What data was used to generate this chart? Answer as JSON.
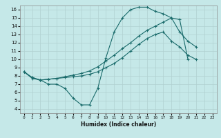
{
  "xlabel": "Humidex (Indice chaleur)",
  "bg_color": "#c5e8e8",
  "grid_color": "#b0d0d0",
  "line_color": "#1a6b6b",
  "xlim": [
    -0.5,
    23.5
  ],
  "ylim": [
    3.5,
    16.5
  ],
  "xticks": [
    0,
    1,
    2,
    3,
    4,
    5,
    6,
    7,
    8,
    9,
    10,
    11,
    12,
    13,
    14,
    15,
    16,
    17,
    18,
    19,
    20,
    21,
    22,
    23
  ],
  "yticks": [
    4,
    5,
    6,
    7,
    8,
    9,
    10,
    11,
    12,
    13,
    14,
    15,
    16
  ],
  "line1_y": [
    8.5,
    7.7,
    7.5,
    7.0,
    7.0,
    6.5,
    5.3,
    4.5,
    4.5,
    6.5,
    10.2,
    13.3,
    15.0,
    16.0,
    16.3,
    16.3,
    15.8,
    15.5,
    15.0,
    13.3,
    12.2,
    11.5
  ],
  "line1_x": [
    0,
    1,
    2,
    3,
    4,
    5,
    6,
    7,
    8,
    9,
    10,
    11,
    12,
    13,
    14,
    15,
    16,
    17,
    18,
    19,
    20,
    21
  ],
  "line2_y": [
    8.5,
    7.8,
    7.5,
    7.6,
    7.7,
    7.8,
    7.9,
    8.0,
    8.2,
    8.5,
    9.0,
    9.5,
    10.2,
    11.0,
    11.8,
    12.5,
    13.0,
    13.3,
    12.2,
    11.5,
    10.5,
    10.0
  ],
  "line2_x": [
    0,
    1,
    2,
    3,
    4,
    5,
    6,
    7,
    8,
    9,
    10,
    11,
    12,
    13,
    14,
    15,
    16,
    17,
    18,
    19,
    20,
    21
  ],
  "line3_y": [
    8.5,
    7.8,
    7.5,
    7.6,
    7.7,
    7.9,
    8.1,
    8.3,
    8.6,
    9.1,
    9.8,
    10.5,
    11.3,
    12.0,
    12.8,
    13.5,
    14.0,
    14.5,
    15.0,
    14.8,
    10.0
  ],
  "line3_x": [
    0,
    1,
    2,
    3,
    4,
    5,
    6,
    7,
    8,
    9,
    10,
    11,
    12,
    13,
    14,
    15,
    16,
    17,
    18,
    19,
    20
  ]
}
